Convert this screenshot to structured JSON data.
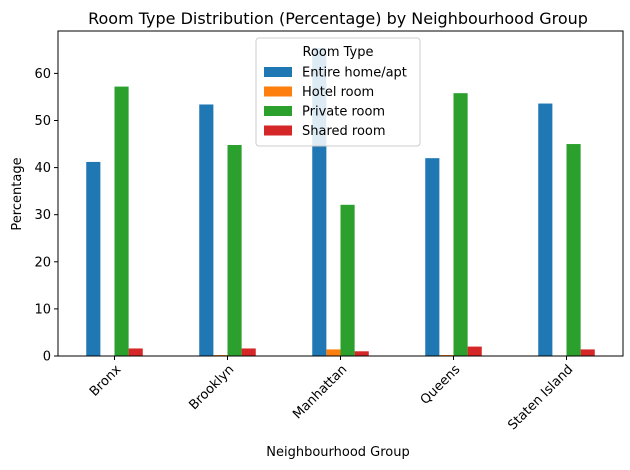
{
  "chart_data": {
    "type": "bar",
    "title": "Room Type Distribution (Percentage) by Neighbourhood Group",
    "xlabel": "Neighbourhood Group",
    "ylabel": "Percentage",
    "ylim": [
      0,
      69
    ],
    "yticks": [
      0,
      10,
      20,
      30,
      40,
      50,
      60
    ],
    "categories": [
      "Bronx",
      "Brooklyn",
      "Manhattan",
      "Queens",
      "Staten Island"
    ],
    "legend": {
      "title": "Room Type",
      "placement": "top-center"
    },
    "grid": false,
    "series": [
      {
        "name": "Entire home/apt",
        "color": "#1f77b4",
        "values": [
          41.2,
          53.4,
          65.4,
          42.0,
          53.6
        ]
      },
      {
        "name": "Hotel room",
        "color": "#ff7f0e",
        "values": [
          0.0,
          0.2,
          1.4,
          0.2,
          0.0
        ]
      },
      {
        "name": "Private room",
        "color": "#2ca02c",
        "values": [
          57.2,
          44.8,
          32.1,
          55.8,
          45.0
        ]
      },
      {
        "name": "Shared room",
        "color": "#d62728",
        "values": [
          1.6,
          1.6,
          1.0,
          2.0,
          1.4
        ]
      }
    ]
  }
}
